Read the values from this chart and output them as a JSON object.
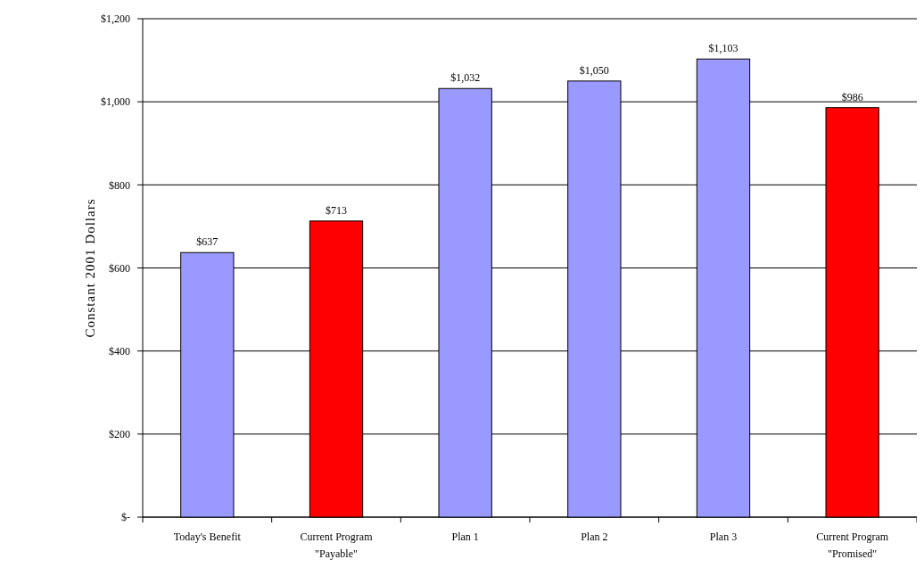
{
  "chart_data": {
    "type": "bar",
    "ylabel": "Constant 2001 Dollars",
    "categories": [
      "Today's Benefit",
      "Current Program\n\"Payable\"",
      "Plan 1",
      "Plan 2",
      "Plan 3",
      "Current Program\n\"Promised\""
    ],
    "values": [
      637,
      713,
      1032,
      1050,
      1103,
      986
    ],
    "colors": [
      "#9999ff",
      "#ff0000",
      "#9999ff",
      "#9999ff",
      "#9999ff",
      "#ff0000"
    ],
    "value_labels": [
      "$637",
      "$713",
      "$1,032",
      "$1,050",
      "$1,103",
      "$986"
    ],
    "ylim": [
      0,
      1200
    ],
    "yticks": [
      {
        "value": 0,
        "label": "$-"
      },
      {
        "value": 200,
        "label": "$200"
      },
      {
        "value": 400,
        "label": "$400"
      },
      {
        "value": 600,
        "label": "$600"
      },
      {
        "value": 800,
        "label": "$800"
      },
      {
        "value": 1000,
        "label": "$1,000"
      },
      {
        "value": 1200,
        "label": "$1,200"
      }
    ],
    "grid": "y"
  }
}
